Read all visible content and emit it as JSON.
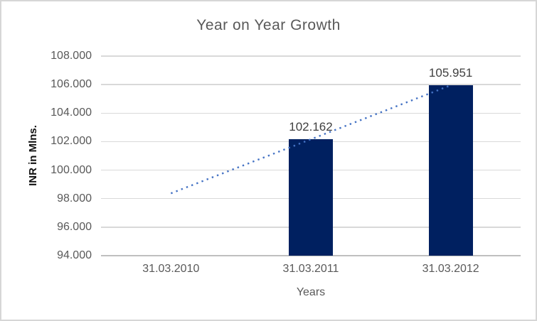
{
  "chart_data": {
    "type": "bar",
    "title": "Year on Year Growth",
    "xlabel": "Years",
    "ylabel": "INR in Mlns.",
    "categories": [
      "31.03.2010",
      "31.03.2011",
      "31.03.2012"
    ],
    "series": [
      {
        "name": "INR in Mlns.",
        "values": [
          null,
          102.162,
          105.951
        ],
        "data_labels": [
          null,
          "102.162",
          "105.951"
        ],
        "color": "#002060"
      }
    ],
    "ylim": [
      94,
      108
    ],
    "ytick_step": 2,
    "ytick_labels": [
      "94.000",
      "96.000",
      "98.000",
      "100.000",
      "102.000",
      "104.000",
      "106.000",
      "108.000"
    ],
    "grid": true,
    "legend": false,
    "trendline": {
      "type": "linear",
      "style": "dotted",
      "color": "#4472C4",
      "x_span": [
        "31.03.2010",
        "31.03.2012"
      ],
      "values": [
        98.373,
        105.951
      ]
    }
  },
  "style": {
    "title_color": "#595959",
    "axis_text_color": "#595959",
    "data_label_color": "#404040",
    "gridline_color": "#D9D9D9",
    "axis_line_color": "#BFBFBF",
    "frame_border_color": "#D6D6D6",
    "background": "#FFFFFF"
  }
}
